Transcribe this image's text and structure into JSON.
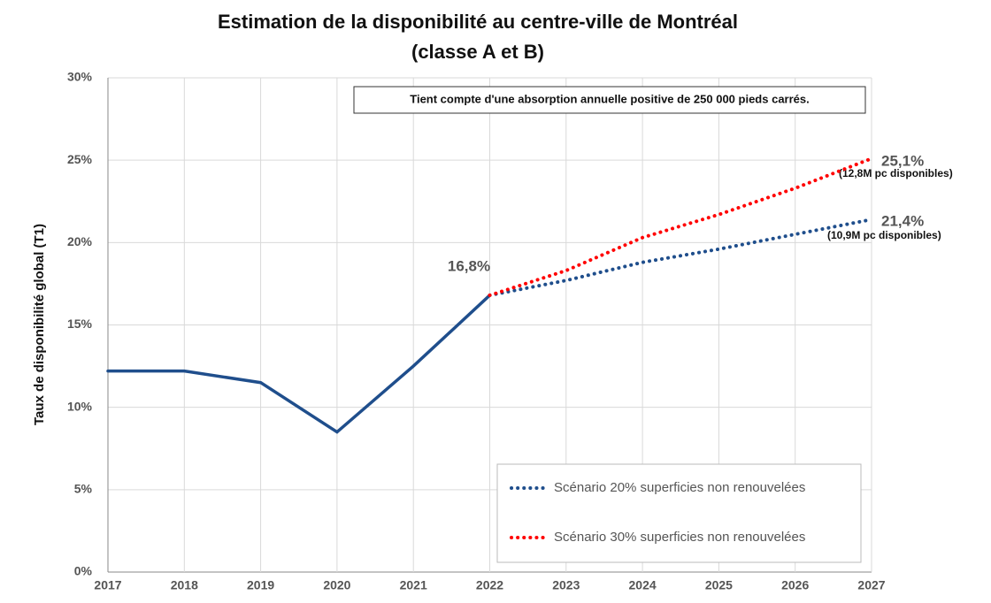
{
  "chart_data": {
    "type": "line",
    "title": "Estimation de la disponibilité au centre-ville de Montréal",
    "subtitle": "(classe A et B)",
    "y_label": "Taux de disponibilité global (T1)",
    "note": "Tient compte d'une absorption annuelle positive de 250 000 pieds carrés.",
    "annotations": [
      "16,8%",
      "25,1%",
      "(12,8M pc disponibles)",
      "21,4%",
      "(10,9M pc disponibles)"
    ],
    "series": [
      {
        "color": "#1f4e8c",
        "dotted": false,
        "x": [
          2017,
          2018,
          2019,
          2020,
          2021,
          2022
        ],
        "values": [
          12.2,
          12.2,
          11.5,
          8.5,
          12.5,
          16.8
        ]
      },
      {
        "name": "Scénario 20% superficies non renouvelées",
        "color": "#1f4e8c",
        "dotted": true,
        "x": [
          2022,
          2023,
          2024,
          2025,
          2026,
          2027
        ],
        "values": [
          16.8,
          17.7,
          18.8,
          19.6,
          20.5,
          21.4
        ]
      },
      {
        "name": "Scénario 30% superficies non renouvelées",
        "color": "#ff0000",
        "dotted": true,
        "x": [
          2022,
          2023,
          2024,
          2025,
          2026,
          2027
        ],
        "values": [
          16.8,
          18.3,
          20.3,
          21.7,
          23.3,
          25.1
        ]
      }
    ],
    "xlim": [
      2017,
      2027
    ],
    "xticks": [
      2017,
      2018,
      2019,
      2020,
      2021,
      2022,
      2023,
      2024,
      2025,
      2026,
      2027
    ],
    "ylim": [
      0,
      30
    ],
    "yticks": [
      {
        "value": 0,
        "label": "0%"
      },
      {
        "value": 5,
        "label": "5%"
      },
      {
        "value": 10,
        "label": "10%"
      },
      {
        "value": 15,
        "label": "15%"
      },
      {
        "value": 20,
        "label": "20%"
      },
      {
        "value": 25,
        "label": "25%"
      },
      {
        "value": 30,
        "label": "30%"
      }
    ],
    "grid": true,
    "legend": "lower right"
  }
}
